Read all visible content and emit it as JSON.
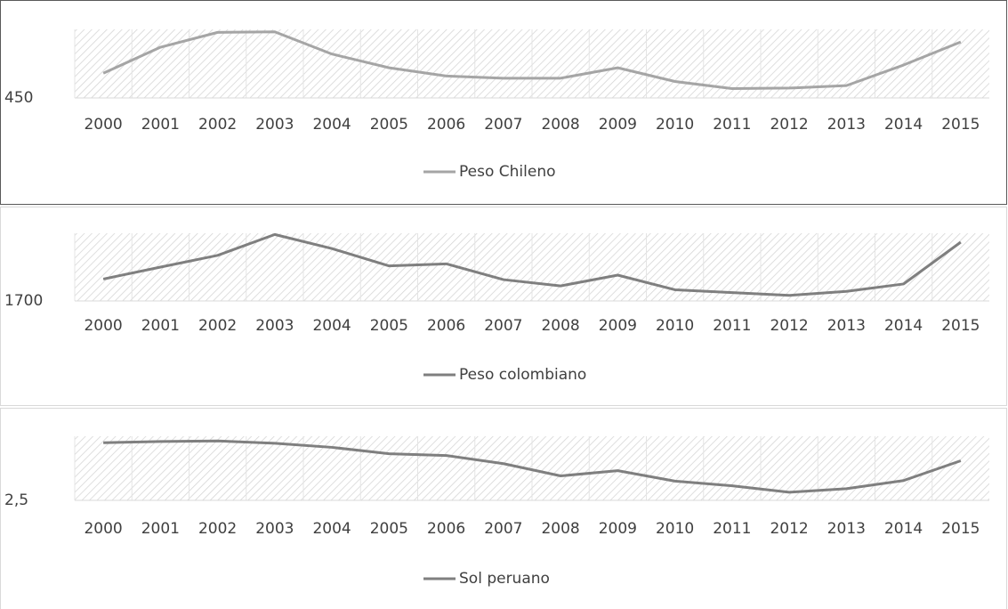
{
  "chart_data": [
    {
      "type": "line",
      "categories": [
        "2000",
        "2001",
        "2002",
        "2003",
        "2004",
        "2005",
        "2006",
        "2007",
        "2008",
        "2009",
        "2010",
        "2011",
        "2012",
        "2013",
        "2014",
        "2015"
      ],
      "series": [
        {
          "name": "Peso Chileno",
          "color": "#a5a5a5",
          "values": [
            540,
            635,
            689,
            691,
            610,
            560,
            530,
            522,
            522,
            560,
            510,
            484,
            486,
            495,
            570,
            654
          ]
        }
      ],
      "ylim": [
        450,
        700
      ],
      "yticks": [
        450
      ]
    },
    {
      "type": "line",
      "categories": [
        "2000",
        "2001",
        "2002",
        "2003",
        "2004",
        "2005",
        "2006",
        "2007",
        "2008",
        "2009",
        "2010",
        "2011",
        "2012",
        "2013",
        "2014",
        "2015"
      ],
      "series": [
        {
          "name": "Peso colombiano",
          "color": "#7f7f7f",
          "values": [
            2088,
            2300,
            2508,
            2878,
            2628,
            2321,
            2358,
            2078,
            1967,
            2158,
            1898,
            1848,
            1798,
            1869,
            2001,
            2742
          ]
        }
      ],
      "ylim": [
        1700,
        2900
      ],
      "yticks": [
        1700
      ]
    },
    {
      "type": "line",
      "categories": [
        "2000",
        "2001",
        "2002",
        "2003",
        "2004",
        "2005",
        "2006",
        "2007",
        "2008",
        "2009",
        "2010",
        "2011",
        "2012",
        "2013",
        "2014",
        "2015"
      ],
      "series": [
        {
          "name": "Sol peruano",
          "color": "#7f7f7f",
          "values": [
            3.49,
            3.51,
            3.52,
            3.48,
            3.41,
            3.3,
            3.27,
            3.13,
            2.92,
            3.01,
            2.83,
            2.75,
            2.64,
            2.7,
            2.84,
            3.18
          ]
        }
      ],
      "ylim": [
        2.5,
        3.6
      ],
      "yticks": [
        {
          "value": 2.5,
          "label": "2,5"
        }
      ]
    }
  ]
}
